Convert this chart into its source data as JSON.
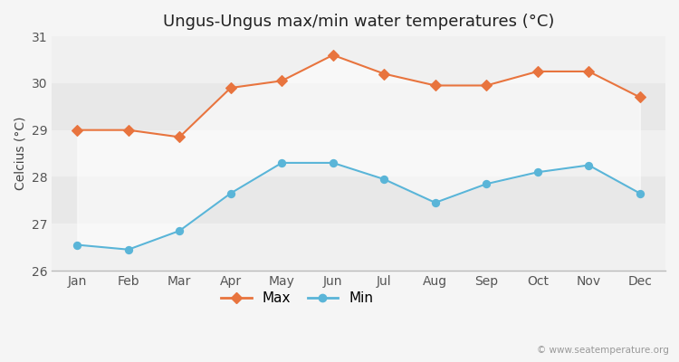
{
  "months": [
    "Jan",
    "Feb",
    "Mar",
    "Apr",
    "May",
    "Jun",
    "Jul",
    "Aug",
    "Sep",
    "Oct",
    "Nov",
    "Dec"
  ],
  "max_temps": [
    29.0,
    29.0,
    28.85,
    29.9,
    30.05,
    30.6,
    30.2,
    29.95,
    29.95,
    30.25,
    30.25,
    29.7
  ],
  "min_temps": [
    26.55,
    26.45,
    26.85,
    27.65,
    28.3,
    28.3,
    27.95,
    27.45,
    27.85,
    28.1,
    28.25,
    27.65
  ],
  "title": "Ungus-Ungus max/min water temperatures (°C)",
  "ylabel": "Celcius (°C)",
  "ylim": [
    26,
    31
  ],
  "yticks": [
    26,
    27,
    28,
    29,
    30,
    31
  ],
  "max_color": "#e8743e",
  "min_color": "#5ab5d8",
  "bg_color": "#f5f5f5",
  "plot_bg_dark": "#e8e8e8",
  "plot_bg_light": "#f0f0f0",
  "band_fill": "#ffffff",
  "legend_max": "Max",
  "legend_min": "Min",
  "watermark": "© www.seatemperature.org",
  "title_fontsize": 13,
  "label_fontsize": 10,
  "tick_fontsize": 10
}
